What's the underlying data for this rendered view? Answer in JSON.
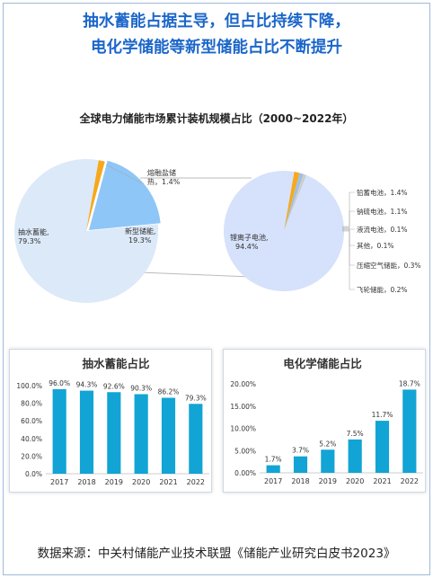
{
  "headline": {
    "line1": "抽水蓄能占据主导，但占比持续下降，",
    "line2": "电化学储能等新型储能占比不断提升"
  },
  "source": "数据来源：中关村储能产业技术联盟《储能产业研究白皮书2023》",
  "colors": {
    "headline": "#1b66c9",
    "pumped_hydro": "#dce9f8",
    "new_storage": "#8ec6f7",
    "molten_salt": "#f7a81b",
    "lithium": "#d6e2fb",
    "bar": "#12a4d4",
    "line": "#bbbbbb"
  },
  "chart_data": [
    {
      "type": "pie",
      "title": "全球电力储能市场累计装机规模占比（2000~2022年）",
      "slices": [
        {
          "name": "抽水蓄能",
          "value": 79.3,
          "label": "79.3%"
        },
        {
          "name": "新型储能",
          "value": 19.3,
          "label": "19.3%"
        },
        {
          "name": "熔融盐储热",
          "value": 1.4,
          "label": "1.4%"
        }
      ]
    },
    {
      "type": "pie",
      "title": "",
      "slices": [
        {
          "name": "锂离子电池",
          "value": 94.4,
          "label": "94.4%"
        },
        {
          "name": "铅蓄电池",
          "value": 1.4,
          "label": "1.4%"
        },
        {
          "name": "钠硫电池",
          "value": 1.1,
          "label": "1.1%"
        },
        {
          "name": "液流电池",
          "value": 0.1,
          "label": "0.1%"
        },
        {
          "name": "其他",
          "value": 0.1,
          "label": "0.1%"
        },
        {
          "name": "压缩空气储能",
          "value": 0.3,
          "label": "0.3%"
        },
        {
          "name": "飞轮储能",
          "value": 0.2,
          "label": "0.2%"
        }
      ]
    },
    {
      "type": "bar",
      "title": "抽水蓄能占比",
      "categories": [
        "2017",
        "2018",
        "2019",
        "2020",
        "2021",
        "2022"
      ],
      "values": [
        96.0,
        94.3,
        92.6,
        90.3,
        86.2,
        79.3
      ],
      "value_labels": [
        "96.0%",
        "94.3%",
        "92.6%",
        "90.3%",
        "86.2%",
        "79.3%"
      ],
      "ylim": [
        0,
        100
      ],
      "yticks": [
        "0.0%",
        "20.0%",
        "40.0%",
        "60.0%",
        "80.0%",
        "100.0%"
      ]
    },
    {
      "type": "bar",
      "title": "电化学储能占比",
      "categories": [
        "2017",
        "2018",
        "2019",
        "2020",
        "2021",
        "2022"
      ],
      "values": [
        1.7,
        3.7,
        5.2,
        7.5,
        11.7,
        18.7
      ],
      "value_labels": [
        "1.7%",
        "3.7%",
        "5.2%",
        "7.5%",
        "11.7%",
        "18.7%"
      ],
      "ylim": [
        0,
        20
      ],
      "yticks": [
        "0.00%",
        "5.00%",
        "10.00%",
        "15.00%",
        "20.00%"
      ]
    }
  ]
}
